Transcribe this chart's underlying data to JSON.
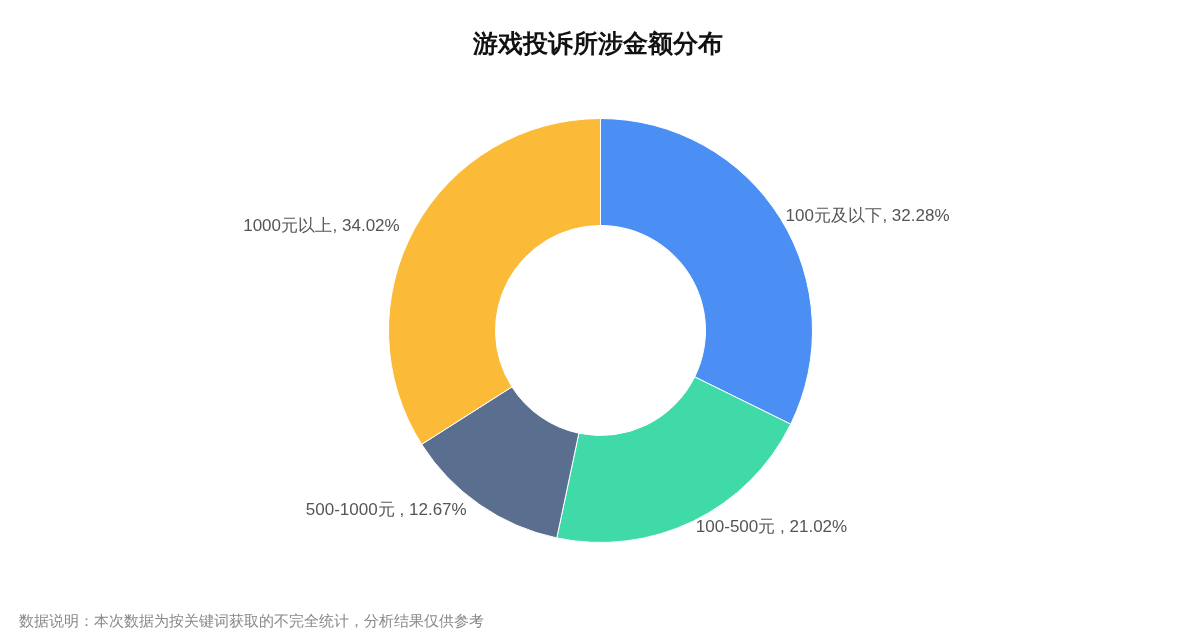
{
  "chart_data": {
    "type": "donut",
    "title": "游戏投诉所涉金额分布",
    "categories": [
      "100元及以下",
      "100-500元",
      "500-1000元",
      "1000元以上"
    ],
    "values": [
      32.28,
      21.02,
      12.67,
      34.02
    ],
    "colors": [
      "#4b8ff5",
      "#40d9a8",
      "#5a6e8f",
      "#fbbb39"
    ],
    "value_labels": [
      ", 32.28%",
      ", 21.02%",
      ", 12.67%",
      ", 34.02%"
    ],
    "annotations": [
      "数据说明：本次数据为按关键词获取的不完全统计，分析结果仅供参考"
    ]
  }
}
